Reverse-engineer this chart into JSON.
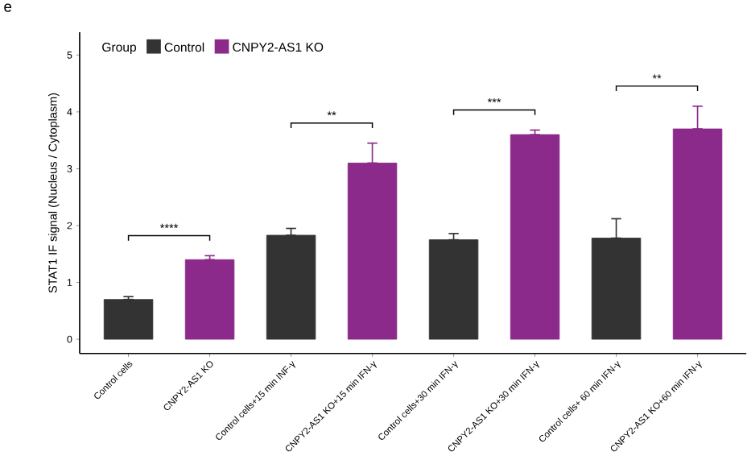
{
  "chart_data": {
    "type": "bar",
    "title": "e",
    "ylabel": "STAT1 IF signal (Nucleus / Cytoplasm)",
    "legend_title": "Group",
    "categories": [
      "Control cells",
      "CNPY2-AS1 KO",
      "Control cells+15 min INF-γ",
      "CNPY2-AS1 KO+15 min IFN-γ",
      "Control cells+30 min IFN-γ",
      "CNPY2-AS1 KO+30 min IFN-γ",
      "Control cells+ 60 min IFN-γ",
      "CNPY2-AS1 KO+60 min IFN-γ"
    ],
    "series": [
      {
        "name": "Control",
        "color": "#333333",
        "values": [
          0.7,
          null,
          1.83,
          null,
          1.75,
          null,
          1.78,
          null
        ],
        "errors": [
          [
            0.7,
            0.75
          ],
          null,
          [
            1.83,
            1.95
          ],
          null,
          [
            1.75,
            1.86
          ],
          null,
          [
            1.78,
            2.12
          ],
          null
        ]
      },
      {
        "name": "CNPY2-AS1 KO",
        "color": "#8b2a8b",
        "values": [
          null,
          1.4,
          null,
          3.1,
          null,
          3.6,
          null,
          3.7
        ],
        "errors": [
          null,
          [
            1.4,
            1.47
          ],
          null,
          [
            3.1,
            3.45
          ],
          null,
          [
            3.6,
            3.68
          ],
          null,
          [
            3.7,
            4.1
          ]
        ]
      }
    ],
    "annotations": [
      "****",
      "**",
      "***",
      "**"
    ],
    "ylim": [
      -0.25,
      5.4
    ],
    "yticks": [
      0,
      1,
      2,
      3,
      4,
      5
    ],
    "grid": false,
    "legend": "top left"
  }
}
